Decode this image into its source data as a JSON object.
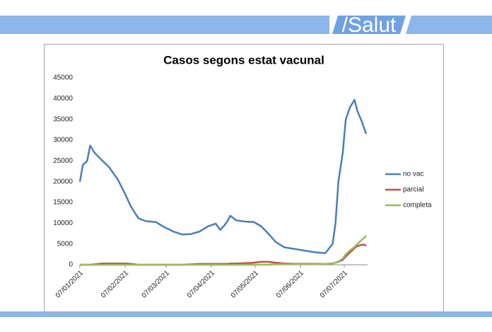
{
  "header": {
    "logo": "/Salut"
  },
  "chart_data": {
    "type": "line",
    "title": "Casos segons estat vacunal",
    "x": [
      "07/01/2021",
      "09/01/2021",
      "12/01/2021",
      "14/01/2021",
      "17/01/2021",
      "22/01/2021",
      "27/01/2021",
      "02/02/2021",
      "07/02/2021",
      "11/02/2021",
      "16/02/2021",
      "21/02/2021",
      "28/02/2021",
      "05/03/2021",
      "12/03/2021",
      "18/03/2021",
      "24/03/2021",
      "30/03/2021",
      "05/04/2021",
      "10/04/2021",
      "13/04/2021",
      "16/04/2021",
      "18/04/2021",
      "20/04/2021",
      "24/04/2021",
      "30/04/2021",
      "06/05/2021",
      "11/05/2021",
      "16/05/2021",
      "21/05/2021",
      "27/05/2021",
      "03/06/2021",
      "10/06/2021",
      "17/06/2021",
      "24/06/2021",
      "29/06/2021",
      "01/07/2021",
      "03/07/2021",
      "06/07/2021",
      "08/07/2021",
      "11/07/2021",
      "14/07/2021",
      "16/07/2021",
      "19/07/2021",
      "21/07/2021",
      "22/07/2021"
    ],
    "series": [
      {
        "name": "no vac",
        "color": "#4a7ebb",
        "values": [
          20000,
          24000,
          25000,
          28700,
          27000,
          25200,
          23500,
          20500,
          17000,
          14000,
          11200,
          10500,
          10300,
          9200,
          8000,
          7300,
          7400,
          8000,
          9300,
          9900,
          8400,
          9500,
          10500,
          11800,
          10700,
          10400,
          10300,
          9300,
          7500,
          5500,
          4200,
          3800,
          3400,
          3000,
          2800,
          5000,
          10000,
          20000,
          27000,
          35000,
          38000,
          39700,
          37000,
          34500,
          32500,
          31500
        ]
      },
      {
        "name": "parcial",
        "color": "#c0504d",
        "values": [
          0,
          0,
          0,
          0,
          100,
          300,
          300,
          300,
          300,
          200,
          0,
          0,
          0,
          0,
          0,
          0,
          100,
          200,
          200,
          200,
          200,
          200,
          200,
          300,
          300,
          400,
          500,
          700,
          700,
          500,
          300,
          200,
          200,
          200,
          200,
          300,
          500,
          700,
          1200,
          2000,
          3000,
          4000,
          4500,
          4800,
          4800,
          4600
        ]
      },
      {
        "name": "completa",
        "color": "#9bbb59",
        "values": [
          0,
          0,
          0,
          0,
          0,
          0,
          0,
          0,
          0,
          0,
          0,
          0,
          0,
          0,
          0,
          0,
          0,
          0,
          0,
          0,
          0,
          0,
          0,
          0,
          0,
          0,
          0,
          0,
          0,
          100,
          100,
          100,
          100,
          100,
          200,
          300,
          500,
          800,
          1500,
          2500,
          3500,
          4300,
          5000,
          6000,
          6600,
          7000
        ]
      }
    ],
    "xlim": [
      "07/01/2021",
      "22/07/2021"
    ],
    "xticks": [
      "07/01/2021",
      "07/02/2021",
      "07/03/2021",
      "07/04/2021",
      "07/05/2021",
      "07/06/2021",
      "07/07/2021"
    ],
    "ylim": [
      0,
      45000
    ],
    "yticks": [
      0,
      5000,
      10000,
      15000,
      20000,
      25000,
      30000,
      35000,
      40000,
      45000
    ],
    "legend": "right"
  }
}
